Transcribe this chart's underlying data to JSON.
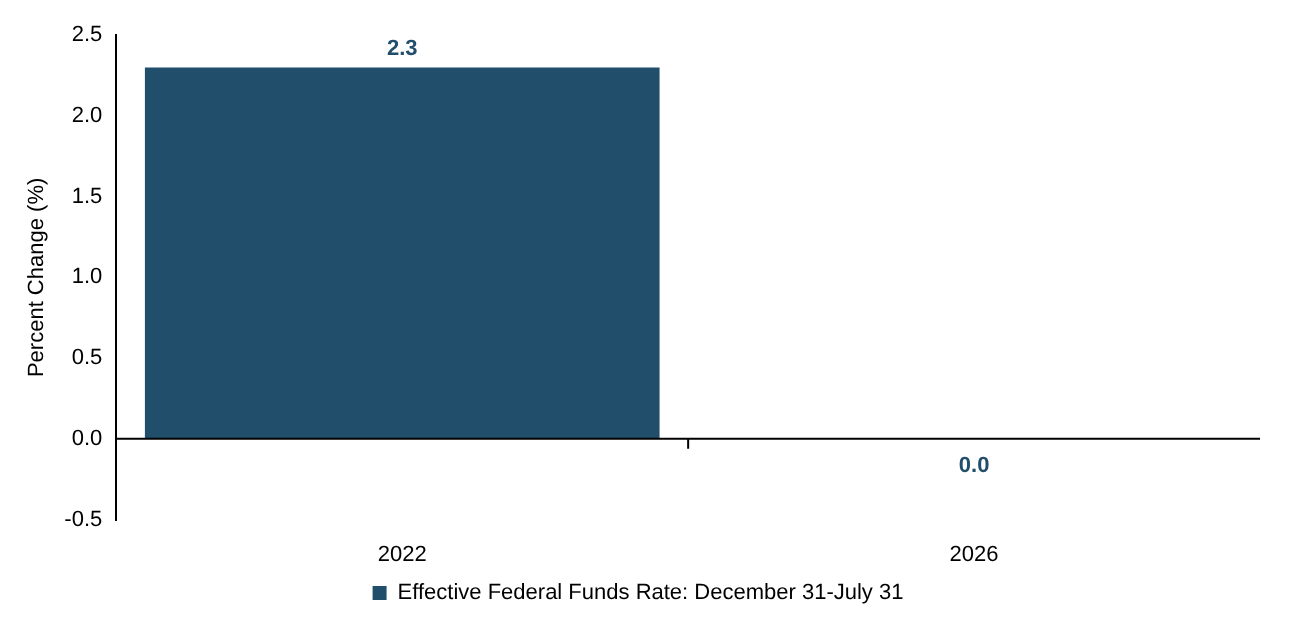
{
  "chart_data": {
    "type": "bar",
    "ylabel": "Percent Change (%)",
    "categories": [
      "2022",
      "2026"
    ],
    "series": [
      {
        "name": "Effective Federal Funds Rate: December 31-July 31",
        "color": "#214e6a",
        "values": [
          2.3,
          0.0
        ]
      }
    ],
    "value_labels": [
      "2.3",
      "0.0"
    ],
    "ylim": [
      -0.5,
      2.5
    ],
    "yticks": [
      -0.5,
      {
        "value": 0,
        "label": "0.0"
      },
      0.5,
      {
        "value": 1,
        "label": "1.0"
      },
      1.5,
      {
        "value": 2,
        "label": "2.0"
      },
      2.5
    ],
    "legend": "bottom"
  }
}
